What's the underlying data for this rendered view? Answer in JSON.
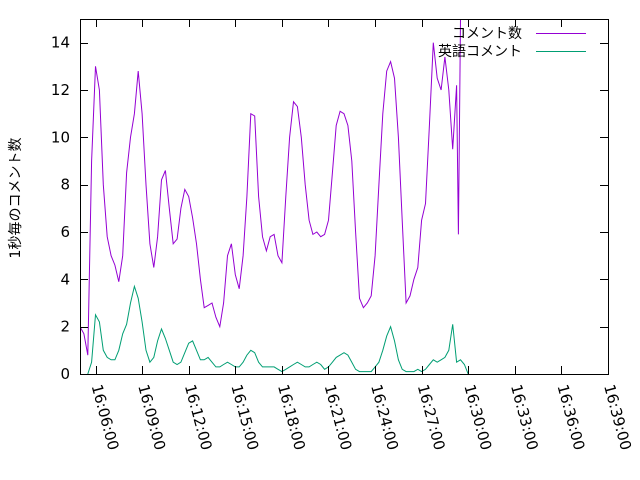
{
  "chart_data": {
    "type": "line",
    "title": "",
    "xlabel": "",
    "ylabel": "1秒毎のコメント数",
    "xlim": [
      "16:05:00",
      "16:39:00"
    ],
    "ylim": [
      0,
      15
    ],
    "y_ticks": [
      0,
      2,
      4,
      6,
      8,
      10,
      12,
      14
    ],
    "x_ticks": [
      "16:06:00",
      "16:09:00",
      "16:12:00",
      "16:15:00",
      "16:18:00",
      "16:21:00",
      "16:24:00",
      "16:27:00",
      "16:30:00",
      "16:33:00",
      "16:36:00",
      "16:39:00"
    ],
    "grid": false,
    "legend_position": "top-right",
    "series": [
      {
        "name": "コメント数",
        "color": "#9400d3",
        "points": [
          [
            "16:05:00",
            2.0
          ],
          [
            "16:05:15",
            1.7
          ],
          [
            "16:05:30",
            0.8
          ],
          [
            "16:05:45",
            9.0
          ],
          [
            "16:06:00",
            13.0
          ],
          [
            "16:06:15",
            12.0
          ],
          [
            "16:06:30",
            8.0
          ],
          [
            "16:06:45",
            5.8
          ],
          [
            "16:07:00",
            5.0
          ],
          [
            "16:07:15",
            4.6
          ],
          [
            "16:07:30",
            3.9
          ],
          [
            "16:07:45",
            5.0
          ],
          [
            "16:08:00",
            8.5
          ],
          [
            "16:08:15",
            10.0
          ],
          [
            "16:08:30",
            11.0
          ],
          [
            "16:08:45",
            12.8
          ],
          [
            "16:09:00",
            11.0
          ],
          [
            "16:09:15",
            8.0
          ],
          [
            "16:09:30",
            5.5
          ],
          [
            "16:09:45",
            4.5
          ],
          [
            "16:10:00",
            5.8
          ],
          [
            "16:10:15",
            8.2
          ],
          [
            "16:10:30",
            8.6
          ],
          [
            "16:10:45",
            7.0
          ],
          [
            "16:11:00",
            5.5
          ],
          [
            "16:11:15",
            5.7
          ],
          [
            "16:11:30",
            7.0
          ],
          [
            "16:11:45",
            7.8
          ],
          [
            "16:12:00",
            7.5
          ],
          [
            "16:12:15",
            6.6
          ],
          [
            "16:12:30",
            5.5
          ],
          [
            "16:12:45",
            4.0
          ],
          [
            "16:13:00",
            2.8
          ],
          [
            "16:13:15",
            2.9
          ],
          [
            "16:13:30",
            3.0
          ],
          [
            "16:13:45",
            2.4
          ],
          [
            "16:14:00",
            2.0
          ],
          [
            "16:14:15",
            3.0
          ],
          [
            "16:14:30",
            5.0
          ],
          [
            "16:14:45",
            5.5
          ],
          [
            "16:15:00",
            4.2
          ],
          [
            "16:15:15",
            3.6
          ],
          [
            "16:15:30",
            5.0
          ],
          [
            "16:15:45",
            7.5
          ],
          [
            "16:16:00",
            11.0
          ],
          [
            "16:16:15",
            10.9
          ],
          [
            "16:16:30",
            7.5
          ],
          [
            "16:16:45",
            5.8
          ],
          [
            "16:17:00",
            5.2
          ],
          [
            "16:17:15",
            5.8
          ],
          [
            "16:17:30",
            5.9
          ],
          [
            "16:17:45",
            5.0
          ],
          [
            "16:18:00",
            4.7
          ],
          [
            "16:18:15",
            7.5
          ],
          [
            "16:18:30",
            10.0
          ],
          [
            "16:18:45",
            11.5
          ],
          [
            "16:19:00",
            11.3
          ],
          [
            "16:19:15",
            10.0
          ],
          [
            "16:19:30",
            8.0
          ],
          [
            "16:19:45",
            6.5
          ],
          [
            "16:20:00",
            5.9
          ],
          [
            "16:20:15",
            6.0
          ],
          [
            "16:20:30",
            5.8
          ],
          [
            "16:20:45",
            5.9
          ],
          [
            "16:21:00",
            6.5
          ],
          [
            "16:21:15",
            8.5
          ],
          [
            "16:21:30",
            10.5
          ],
          [
            "16:21:45",
            11.1
          ],
          [
            "16:22:00",
            11.0
          ],
          [
            "16:22:15",
            10.5
          ],
          [
            "16:22:30",
            9.0
          ],
          [
            "16:22:45",
            6.0
          ],
          [
            "16:23:00",
            3.2
          ],
          [
            "16:23:15",
            2.8
          ],
          [
            "16:23:30",
            3.0
          ],
          [
            "16:23:45",
            3.3
          ],
          [
            "16:24:00",
            5.0
          ],
          [
            "16:24:15",
            8.0
          ],
          [
            "16:24:30",
            11.0
          ],
          [
            "16:24:45",
            12.8
          ],
          [
            "16:25:00",
            13.2
          ],
          [
            "16:25:15",
            12.5
          ],
          [
            "16:25:30",
            10.0
          ],
          [
            "16:25:45",
            6.5
          ],
          [
            "16:26:00",
            3.0
          ],
          [
            "16:26:15",
            3.3
          ],
          [
            "16:26:30",
            4.0
          ],
          [
            "16:26:45",
            4.5
          ],
          [
            "16:27:00",
            6.5
          ],
          [
            "16:27:15",
            7.2
          ],
          [
            "16:27:30",
            10.5
          ],
          [
            "16:27:45",
            14.0
          ],
          [
            "16:28:00",
            12.5
          ],
          [
            "16:28:15",
            12.0
          ],
          [
            "16:28:30",
            13.4
          ],
          [
            "16:28:45",
            12.0
          ],
          [
            "16:29:00",
            9.5
          ],
          [
            "16:29:15",
            12.2
          ],
          [
            "16:29:22",
            5.9
          ],
          [
            "16:29:30",
            15.0
          ]
        ]
      },
      {
        "name": "英語コメント",
        "color": "#009e73",
        "points": [
          [
            "16:05:30",
            0.0
          ],
          [
            "16:05:45",
            0.5
          ],
          [
            "16:06:00",
            2.5
          ],
          [
            "16:06:15",
            2.2
          ],
          [
            "16:06:30",
            1.0
          ],
          [
            "16:06:45",
            0.7
          ],
          [
            "16:07:00",
            0.6
          ],
          [
            "16:07:15",
            0.6
          ],
          [
            "16:07:30",
            1.0
          ],
          [
            "16:07:45",
            1.7
          ],
          [
            "16:08:00",
            2.1
          ],
          [
            "16:08:15",
            3.0
          ],
          [
            "16:08:30",
            3.7
          ],
          [
            "16:08:45",
            3.2
          ],
          [
            "16:09:00",
            2.2
          ],
          [
            "16:09:15",
            1.0
          ],
          [
            "16:09:30",
            0.5
          ],
          [
            "16:09:45",
            0.7
          ],
          [
            "16:10:00",
            1.4
          ],
          [
            "16:10:15",
            1.9
          ],
          [
            "16:10:30",
            1.5
          ],
          [
            "16:10:45",
            1.0
          ],
          [
            "16:11:00",
            0.5
          ],
          [
            "16:11:15",
            0.4
          ],
          [
            "16:11:30",
            0.5
          ],
          [
            "16:11:45",
            0.9
          ],
          [
            "16:12:00",
            1.3
          ],
          [
            "16:12:15",
            1.4
          ],
          [
            "16:12:30",
            1.0
          ],
          [
            "16:12:45",
            0.6
          ],
          [
            "16:13:00",
            0.6
          ],
          [
            "16:13:15",
            0.7
          ],
          [
            "16:13:30",
            0.5
          ],
          [
            "16:13:45",
            0.3
          ],
          [
            "16:14:00",
            0.3
          ],
          [
            "16:14:15",
            0.4
          ],
          [
            "16:14:30",
            0.5
          ],
          [
            "16:14:45",
            0.4
          ],
          [
            "16:15:00",
            0.3
          ],
          [
            "16:15:15",
            0.3
          ],
          [
            "16:15:30",
            0.5
          ],
          [
            "16:15:45",
            0.8
          ],
          [
            "16:16:00",
            1.0
          ],
          [
            "16:16:15",
            0.9
          ],
          [
            "16:16:30",
            0.5
          ],
          [
            "16:16:45",
            0.3
          ],
          [
            "16:17:00",
            0.3
          ],
          [
            "16:17:15",
            0.3
          ],
          [
            "16:17:30",
            0.3
          ],
          [
            "16:17:45",
            0.2
          ],
          [
            "16:18:00",
            0.1
          ],
          [
            "16:18:15",
            0.2
          ],
          [
            "16:18:30",
            0.3
          ],
          [
            "16:18:45",
            0.4
          ],
          [
            "16:19:00",
            0.5
          ],
          [
            "16:19:15",
            0.4
          ],
          [
            "16:19:30",
            0.3
          ],
          [
            "16:19:45",
            0.3
          ],
          [
            "16:20:00",
            0.4
          ],
          [
            "16:20:15",
            0.5
          ],
          [
            "16:20:30",
            0.4
          ],
          [
            "16:20:45",
            0.2
          ],
          [
            "16:21:00",
            0.3
          ],
          [
            "16:21:15",
            0.5
          ],
          [
            "16:21:30",
            0.7
          ],
          [
            "16:21:45",
            0.8
          ],
          [
            "16:22:00",
            0.9
          ],
          [
            "16:22:15",
            0.8
          ],
          [
            "16:22:30",
            0.5
          ],
          [
            "16:22:45",
            0.2
          ],
          [
            "16:23:00",
            0.1
          ],
          [
            "16:23:15",
            0.1
          ],
          [
            "16:23:30",
            0.1
          ],
          [
            "16:23:45",
            0.1
          ],
          [
            "16:24:00",
            0.3
          ],
          [
            "16:24:15",
            0.5
          ],
          [
            "16:24:30",
            1.0
          ],
          [
            "16:24:45",
            1.6
          ],
          [
            "16:25:00",
            2.0
          ],
          [
            "16:25:15",
            1.4
          ],
          [
            "16:25:30",
            0.6
          ],
          [
            "16:25:45",
            0.2
          ],
          [
            "16:26:00",
            0.1
          ],
          [
            "16:26:15",
            0.1
          ],
          [
            "16:26:30",
            0.1
          ],
          [
            "16:26:45",
            0.2
          ],
          [
            "16:27:00",
            0.1
          ],
          [
            "16:27:15",
            0.2
          ],
          [
            "16:27:30",
            0.4
          ],
          [
            "16:27:45",
            0.6
          ],
          [
            "16:28:00",
            0.5
          ],
          [
            "16:28:15",
            0.6
          ],
          [
            "16:28:30",
            0.7
          ],
          [
            "16:28:45",
            1.0
          ],
          [
            "16:29:00",
            2.1
          ],
          [
            "16:29:15",
            0.5
          ],
          [
            "16:29:30",
            0.6
          ],
          [
            "16:29:45",
            0.4
          ],
          [
            "16:30:00",
            0.0
          ]
        ]
      }
    ]
  }
}
